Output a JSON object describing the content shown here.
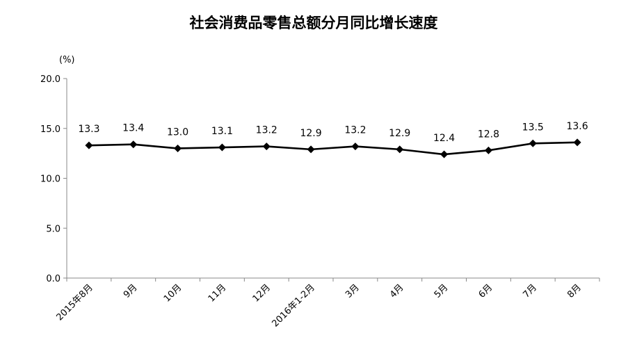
{
  "chart_data": {
    "type": "line",
    "title": "社会消费品零售总额分月同比增长速度",
    "unit_label": "(%)",
    "xlabel": "",
    "ylabel": "",
    "ylim": [
      0,
      20
    ],
    "yticks": [
      "0.0",
      "5.0",
      "10.0",
      "15.0",
      "20.0"
    ],
    "grid": false,
    "legend": "none",
    "categories": [
      "2015年8月",
      "9月",
      "10月",
      "11月",
      "12月",
      "2016年1-2月",
      "3月",
      "4月",
      "5月",
      "6月",
      "7月",
      "8月"
    ],
    "series": [
      {
        "values": [
          13.3,
          13.4,
          13.0,
          13.1,
          13.2,
          12.9,
          13.2,
          12.9,
          12.4,
          12.8,
          13.5,
          13.6
        ],
        "data_labels": [
          "13.3",
          "13.4",
          "13.0",
          "13.1",
          "13.2",
          "12.9",
          "13.2",
          "12.9",
          "12.4",
          "12.8",
          "13.5",
          "13.6"
        ],
        "color": "#000000",
        "marker": "diamond"
      }
    ]
  }
}
